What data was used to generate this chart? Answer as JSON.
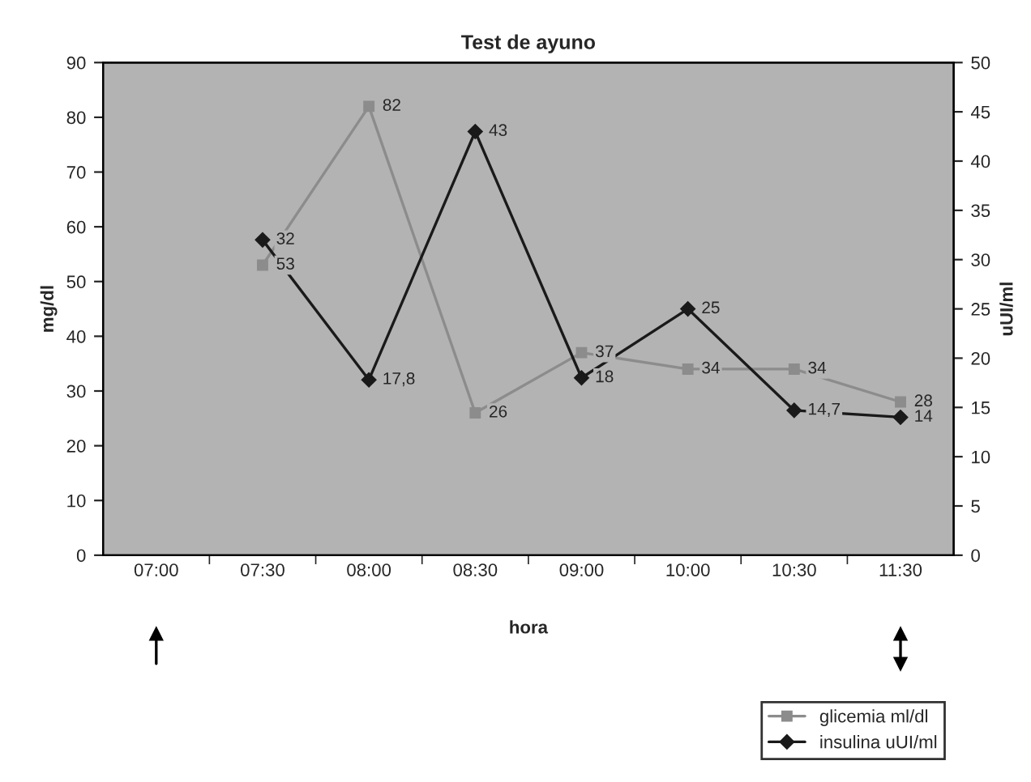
{
  "chart_data": {
    "type": "line",
    "title": "Test de ayuno",
    "xlabel": "hora",
    "ylabel": "mg/dl",
    "y2label": "uUI/ml",
    "categories": [
      "07:00",
      "07:30",
      "08:00",
      "08:30",
      "09:00",
      "10:00",
      "10:30",
      "11:30"
    ],
    "series": [
      {
        "name": "glicemia ml/dl",
        "color": "#8c8c8c",
        "marker": "square",
        "values": [
          null,
          53,
          82,
          26,
          37,
          34,
          34,
          28
        ],
        "value_labels": [
          null,
          "53",
          "82",
          "26",
          "37",
          "34",
          "34",
          "28"
        ]
      },
      {
        "name": "insulina uUI/ml",
        "color": "#1a1a1a",
        "marker": "diamond",
        "axis": "y2",
        "values": [
          null,
          32,
          17.8,
          43,
          18,
          25,
          14.7,
          14
        ],
        "value_labels": [
          null,
          "32",
          "17,8",
          "43",
          "18",
          "25",
          "14,7",
          "14"
        ]
      }
    ],
    "ylim": [
      0,
      90
    ],
    "yticks": [
      0,
      10,
      20,
      30,
      40,
      50,
      60,
      70,
      80,
      90
    ],
    "y2lim": [
      0,
      50
    ],
    "y2ticks": [
      0,
      5,
      10,
      15,
      20,
      25,
      30,
      35,
      40,
      45,
      50
    ],
    "grid": false,
    "legend": "bottom right",
    "line_style": "solid"
  }
}
